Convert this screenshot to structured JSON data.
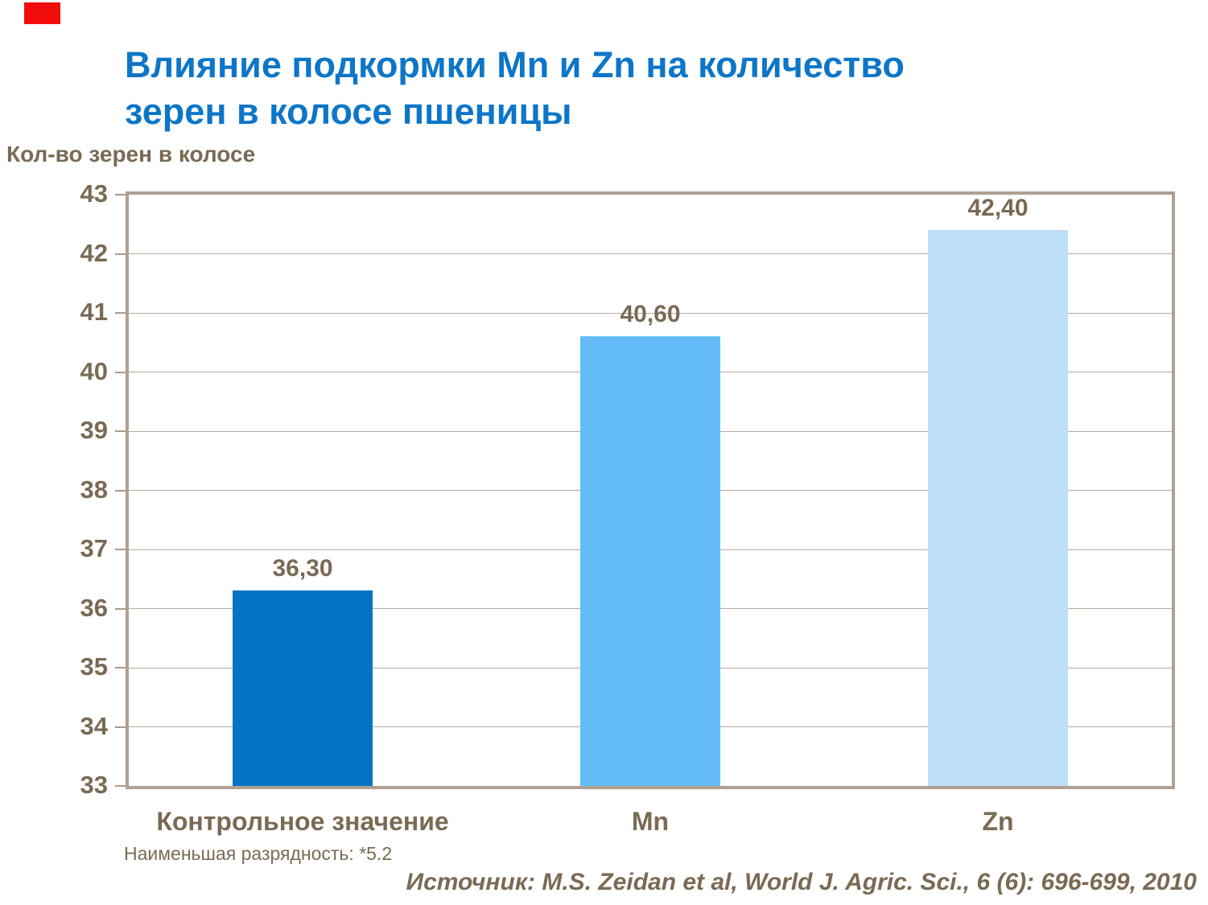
{
  "marker": {
    "color": "#F20D0D"
  },
  "title": {
    "line1": "Влияние подкормки Mn и Zn на количество",
    "line2": "зерен в колосе пшеницы",
    "color": "#0D76C8"
  },
  "axis_title": "Кол-во зерен в колосе",
  "chart_data": {
    "type": "bar",
    "categories": [
      "Контрольное значение",
      "Mn",
      "Zn"
    ],
    "values": [
      36.3,
      40.6,
      42.4
    ],
    "value_labels": [
      "36,30",
      "40,60",
      "42,40"
    ],
    "bar_colors": [
      "#0273C6",
      "#64BDF8",
      "#BDDFF7"
    ],
    "title": "Влияние подкормки Mn и Zn на количество зерен в колосе пшеницы",
    "xlabel": "",
    "ylabel": "Кол-во зерен в колосе",
    "ylim": [
      33,
      43
    ],
    "ytick_step": 1,
    "grid": true,
    "legend": false,
    "text_color": "#7A6A54",
    "frame_color": "#AEA092",
    "gridline_color": "#B5A99C"
  },
  "footnote": "Наименьшая разрядность: *5.2",
  "source": "Источник: M.S. Zeidan et al, World J. Agric. Sci., 6 (6): 696-699, 2010"
}
